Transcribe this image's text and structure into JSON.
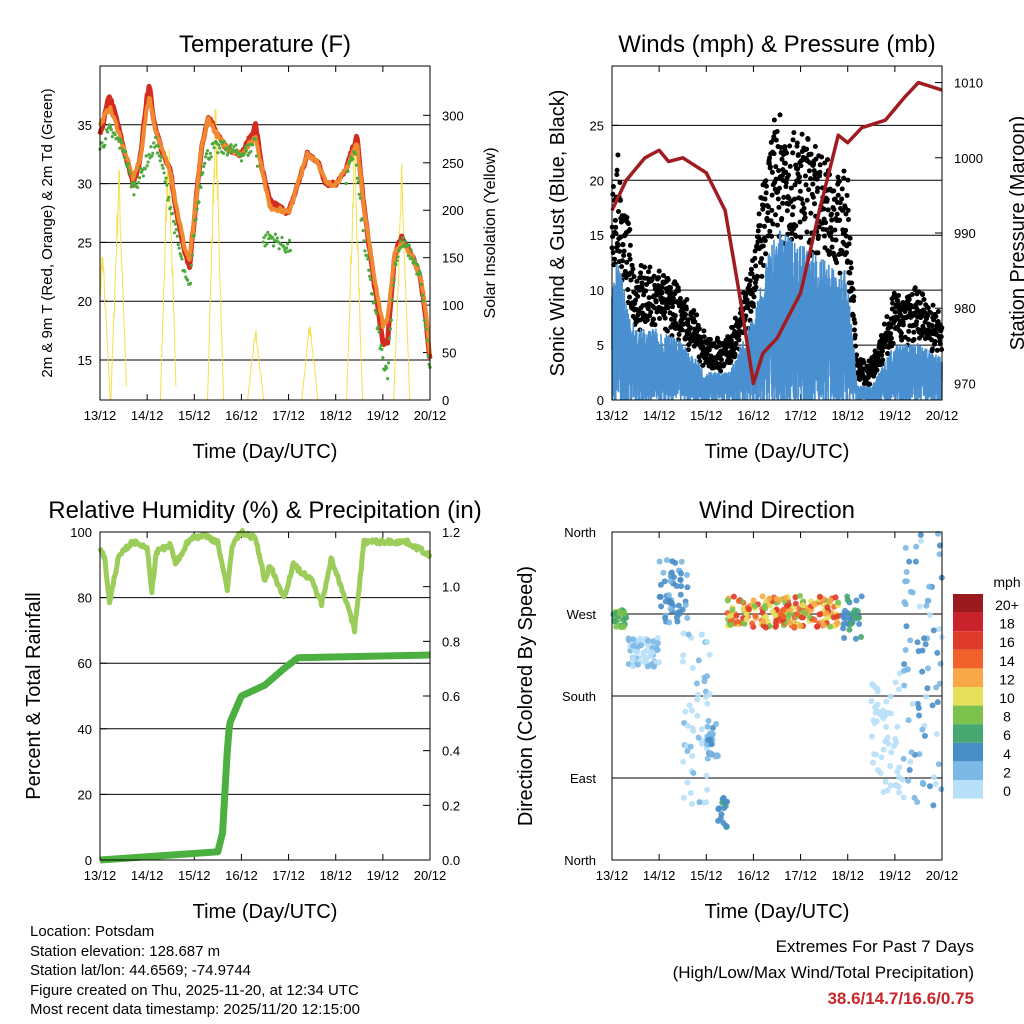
{
  "chart_data": [
    {
      "type": "line",
      "title": "Temperature (F)",
      "xlabel": "Time (Day/UTC)",
      "ylabel": "2m & 9m T (Red, Orange) & 2m Td (Green)",
      "y2label": "Solar Insolation (Yellow)",
      "xticks": [
        "13/12",
        "14/12",
        "15/12",
        "16/12",
        "17/12",
        "18/12",
        "19/12",
        "20/12"
      ],
      "ylim": [
        11.6,
        40
      ],
      "yticks": [
        15,
        20,
        25,
        30,
        35
      ],
      "y2lim": [
        0,
        352
      ],
      "y2ticks": [
        0,
        50,
        100,
        150,
        200,
        250,
        300
      ],
      "series": [
        {
          "name": "2m T",
          "color": "#d42a20",
          "x": [
            0,
            0.2,
            0.35,
            0.5,
            0.7,
            0.85,
            1.0,
            1.05,
            1.15,
            1.3,
            1.5,
            1.6,
            1.8,
            1.9,
            2.0,
            2.15,
            2.3,
            2.5,
            2.7,
            3.0,
            3.2,
            3.3,
            3.45,
            3.6,
            3.8,
            4.0,
            4.2,
            4.4,
            4.6,
            4.8,
            5.0,
            5.2,
            5.45,
            5.6,
            5.8,
            6.0,
            6.1,
            6.25,
            6.4,
            6.6,
            6.8,
            6.9,
            7.0
          ],
          "y": [
            34,
            37.5,
            35.5,
            33,
            30,
            32,
            37.5,
            38.3,
            35,
            33,
            31,
            28,
            24,
            23,
            27,
            33,
            35.8,
            34,
            33,
            32.5,
            34,
            35,
            31,
            28.5,
            28,
            27.5,
            30,
            32.5,
            32,
            30,
            30,
            31,
            34,
            28,
            22,
            16.5,
            16.5,
            24,
            25.5,
            24,
            22,
            19,
            15
          ]
        },
        {
          "name": "9m T",
          "color": "#f08a30",
          "x": [
            0,
            0.2,
            0.35,
            0.5,
            0.7,
            0.85,
            1.0,
            1.05,
            1.15,
            1.3,
            1.5,
            1.6,
            1.8,
            1.9,
            2.0,
            2.15,
            2.3,
            2.5,
            2.7,
            3.0,
            3.2,
            3.3,
            3.45,
            3.6,
            3.8,
            4.0,
            4.2,
            4.4,
            4.6,
            4.8,
            5.0,
            5.2,
            5.45,
            5.6,
            5.8,
            6.0,
            6.1,
            6.25,
            6.4,
            6.6,
            6.8,
            6.9,
            7.0
          ],
          "y": [
            35,
            36.5,
            35,
            33,
            30.5,
            32,
            36.5,
            37.5,
            35,
            33,
            31,
            28.5,
            24.5,
            23.5,
            27,
            33,
            35.5,
            34,
            33,
            32.5,
            33.5,
            34,
            31,
            28,
            27.8,
            27.5,
            30,
            32.5,
            32,
            30,
            30,
            31,
            33.5,
            28,
            22.5,
            18,
            18.5,
            24,
            25,
            24,
            22,
            19.5,
            15.5
          ]
        },
        {
          "name": "2m Td",
          "color": "#4caa3c",
          "x": [
            0,
            0.2,
            0.5,
            0.7,
            0.9,
            1.0,
            1.2,
            1.4,
            1.6,
            1.8,
            1.9,
            2.0,
            2.2,
            2.4,
            2.7,
            3.0,
            3.2,
            3.3,
            3.45,
            3.6,
            3.8,
            4.0,
            5.2,
            5.4,
            5.6,
            5.8,
            6.0,
            6.1,
            6.25,
            6.4,
            6.6,
            6.8,
            7.0
          ],
          "y": [
            33,
            34.5,
            33,
            29.5,
            31,
            32,
            33.5,
            30,
            26,
            22,
            21,
            26,
            32,
            33,
            33,
            32.5,
            33,
            34,
            25,
            25.5,
            25,
            24.5,
            30,
            33,
            25,
            20,
            15,
            14,
            23,
            25,
            24,
            22,
            14
          ]
        },
        {
          "name": "Solar",
          "color": "#f5e04a",
          "axis": "y2",
          "peaks_x": [
            0.05,
            0.4,
            1.45,
            2.45,
            3.3,
            4.45,
            5.4,
            6.4
          ],
          "peaks_y": [
            170,
            260,
            300,
            330,
            80,
            90,
            290,
            250
          ]
        }
      ]
    },
    {
      "type": "line",
      "title": "Winds (mph) & Pressure (mb)",
      "xlabel": "Time (Day/UTC)",
      "ylabel": "Sonic Wind & Gust (Blue, Black)",
      "y2label": "Station Pressure (Maroon)",
      "xticks": [
        "13/12",
        "14/12",
        "15/12",
        "16/12",
        "17/12",
        "18/12",
        "19/12",
        "20/12"
      ],
      "ylim": [
        0,
        30.4
      ],
      "yticks": [
        0,
        5,
        10,
        15,
        20,
        25
      ],
      "y2lim": [
        967.8,
        1012.2
      ],
      "y2ticks": [
        970,
        980,
        990,
        1000,
        1010
      ],
      "series": [
        {
          "name": "Wind",
          "color": "#4a90d0",
          "x": [
            0,
            0.1,
            0.5,
            1,
            1.5,
            2,
            2.5,
            3,
            3.3,
            3.5,
            4,
            4.5,
            5,
            5.2,
            5.5,
            6,
            6.5,
            7
          ],
          "y": [
            8,
            10,
            5,
            5,
            4,
            2,
            2,
            6,
            10,
            12,
            11,
            10,
            9,
            1,
            1,
            4,
            4,
            3
          ]
        },
        {
          "name": "Gust",
          "color": "#000000",
          "max": 27.8
        },
        {
          "name": "Pressure",
          "color": "#a01c20",
          "axis": "y2",
          "x": [
            0,
            0.3,
            0.7,
            1.0,
            1.2,
            1.5,
            2.0,
            2.4,
            2.7,
            3.0,
            3.2,
            3.5,
            4.0,
            4.4,
            4.8,
            5.0,
            5.3,
            5.8,
            6.2,
            6.5,
            7.0
          ],
          "y": [
            993,
            997,
            1000,
            1001,
            999.5,
            1000,
            998,
            993,
            982,
            970,
            974,
            976,
            982,
            993,
            1003,
            1002,
            1004,
            1005,
            1008,
            1010,
            1009
          ]
        }
      ]
    },
    {
      "type": "line",
      "title": "Relative Humidity (%) & Precipitation (in)",
      "xlabel": "Time (Day/UTC)",
      "ylabel": "Percent & Total Rainfall",
      "xticks": [
        "13/12",
        "14/12",
        "15/12",
        "16/12",
        "17/12",
        "18/12",
        "19/12",
        "20/12"
      ],
      "ylim": [
        0,
        100
      ],
      "yticks": [
        0,
        20,
        40,
        60,
        80,
        100
      ],
      "y2lim": [
        0,
        1.2
      ],
      "y2ticks": [
        "0.0",
        "0.2",
        "0.4",
        "0.6",
        "0.8",
        "1.0",
        "1.2"
      ],
      "series": [
        {
          "name": "RH",
          "color": "#9ccc5a",
          "x": [
            0,
            0.1,
            0.2,
            0.4,
            0.7,
            1,
            1.1,
            1.2,
            1.5,
            1.6,
            1.9,
            2.2,
            2.5,
            2.7,
            2.8,
            3.0,
            3.3,
            3.5,
            3.6,
            3.9,
            4.1,
            4.5,
            4.7,
            4.9,
            5.2,
            5.4,
            5.6,
            5.8,
            6.5,
            7
          ],
          "y": [
            95,
            92,
            78,
            93,
            97,
            95,
            82,
            94,
            96,
            90,
            98,
            99,
            97,
            82,
            96,
            100,
            98,
            85,
            90,
            80,
            90,
            85,
            78,
            92,
            80,
            70,
            97,
            97,
            97,
            93
          ]
        },
        {
          "name": "Precip",
          "color": "#4cb040",
          "axis": "y2",
          "x": [
            0,
            2.5,
            2.6,
            2.7,
            2.75,
            3.0,
            3.5,
            3.9,
            4.2,
            7
          ],
          "y": [
            0,
            0.03,
            0.1,
            0.4,
            0.5,
            0.6,
            0.64,
            0.7,
            0.74,
            0.75
          ]
        }
      ]
    },
    {
      "type": "scatter",
      "title": "Wind Direction",
      "xlabel": "Time (Day/UTC)",
      "ylabel": "Direction (Colored By Speed)",
      "xticks": [
        "13/12",
        "14/12",
        "15/12",
        "16/12",
        "17/12",
        "18/12",
        "19/12",
        "20/12"
      ],
      "yticks": [
        "North",
        "East",
        "South",
        "West",
        "North"
      ],
      "ylim": [
        0,
        360
      ],
      "clusters": [
        {
          "x": [
            0,
            0.3
          ],
          "dir": [
            255,
            275
          ],
          "speed": [
            6,
            10
          ]
        },
        {
          "x": [
            0.3,
            1.0
          ],
          "dir": [
            210,
            245
          ],
          "speed": [
            1,
            3
          ]
        },
        {
          "x": [
            1.0,
            1.6
          ],
          "dir": [
            260,
            330
          ],
          "speed": [
            3,
            6
          ]
        },
        {
          "x": [
            1.5,
            2.1
          ],
          "dir": [
            60,
            250
          ],
          "speed": [
            0,
            3
          ]
        },
        {
          "x": [
            2.0,
            2.25
          ],
          "dir": [
            110,
            160
          ],
          "speed": [
            2,
            5
          ]
        },
        {
          "x": [
            2.25,
            2.45
          ],
          "dir": [
            30,
            70
          ],
          "speed": [
            4,
            7
          ]
        },
        {
          "x": [
            2.45,
            4.8
          ],
          "dir": [
            255,
            290
          ],
          "speed": [
            8,
            18
          ]
        },
        {
          "x": [
            4.9,
            5.3
          ],
          "dir": [
            235,
            290
          ],
          "speed": [
            4,
            8
          ]
        },
        {
          "x": [
            5.5,
            6.1
          ],
          "dir": [
            70,
            200
          ],
          "speed": [
            0,
            2
          ]
        },
        {
          "x": [
            6.1,
            7.0
          ],
          "dir": [
            60,
            360
          ],
          "speed": [
            1,
            5
          ]
        }
      ],
      "legend": {
        "title": "mph",
        "labels": [
          "20+",
          "18",
          "16",
          "14",
          "12",
          "10",
          "8",
          "6",
          "4",
          "2",
          "0"
        ],
        "colors": [
          "#9a1a1e",
          "#c8232a",
          "#e03a2a",
          "#f0622a",
          "#f8a848",
          "#e6e05a",
          "#7cc24c",
          "#46a870",
          "#4a8ec8",
          "#7cb8e4",
          "#b8e0f8"
        ]
      }
    }
  ],
  "footer": {
    "location": "Location: Potsdam",
    "elevation": "Station elevation: 128.687 m",
    "latlon": "Station lat/lon: 44.6569; -74.9744",
    "created": "Figure created on Thu, 2025-11-20, at 12:34 UTC",
    "recent": "Most recent data timestamp: 2025/11/20 12:15:00",
    "extremes_title": "Extremes For Past 7 Days",
    "extremes_sub": "(High/Low/Max Wind/Total Precipitation)",
    "extremes_value": "38.6/14.7/16.6/0.75"
  }
}
